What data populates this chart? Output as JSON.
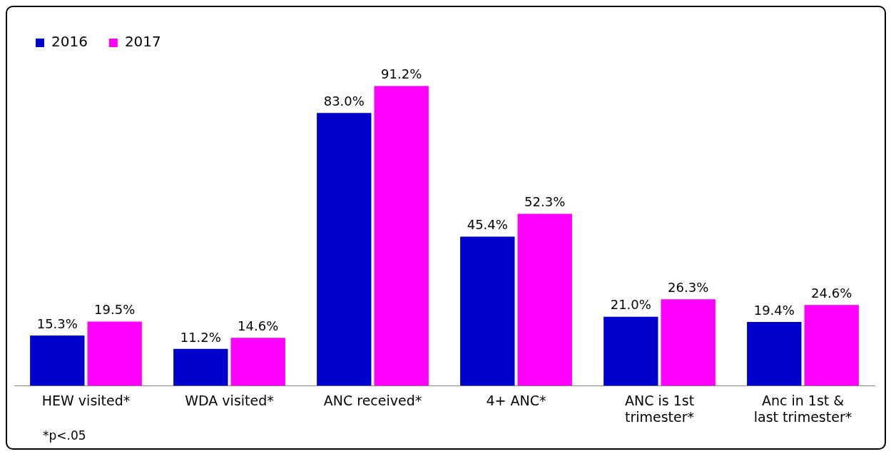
{
  "chart_data": {
    "type": "bar",
    "categories": [
      "HEW visited*",
      "WDA visited*",
      "ANC received*",
      "4+ ANC*",
      "ANC is 1st trimester*",
      "Anc in 1st & last trimester*"
    ],
    "series": [
      {
        "name": "2016",
        "color": "#0000cc",
        "values": [
          15.3,
          11.2,
          83.0,
          45.4,
          21.0,
          19.4
        ],
        "value_labels": [
          "15.3%",
          "11.2%",
          "83.0%",
          "45.4%",
          "21.0%",
          "19.4%"
        ]
      },
      {
        "name": "2017",
        "color": "#ff00ff",
        "values": [
          19.5,
          14.6,
          91.2,
          52.3,
          26.3,
          24.6
        ],
        "value_labels": [
          "19.5%",
          "14.6%",
          "91.2%",
          "52.3%",
          "26.3%",
          "24.6%"
        ]
      }
    ],
    "legend": "top left",
    "annotations": [
      "*p<.05"
    ]
  }
}
